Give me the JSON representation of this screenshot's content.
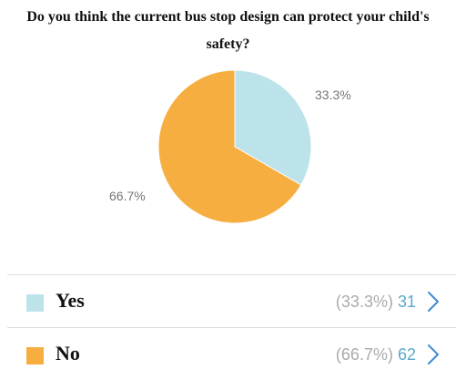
{
  "chart_data": {
    "type": "pie",
    "title": "Do you think the current bus stop design can protect your child's safety?",
    "categories": [
      "Yes",
      "No"
    ],
    "values": [
      31,
      62
    ],
    "percent_labels": [
      "33.3%",
      "66.7%"
    ],
    "legend_percent_labels": [
      "(33.3%)",
      "(66.7%)"
    ],
    "colors": [
      "#bde3ea",
      "#f7ae41"
    ],
    "legend": "bottom"
  },
  "colors": {
    "slice_stroke": "#ffffff",
    "accent": "#5ba9c9",
    "chevron": "#3f8bd1"
  },
  "icons": {
    "legend_arrow": "chevron-right-icon"
  }
}
